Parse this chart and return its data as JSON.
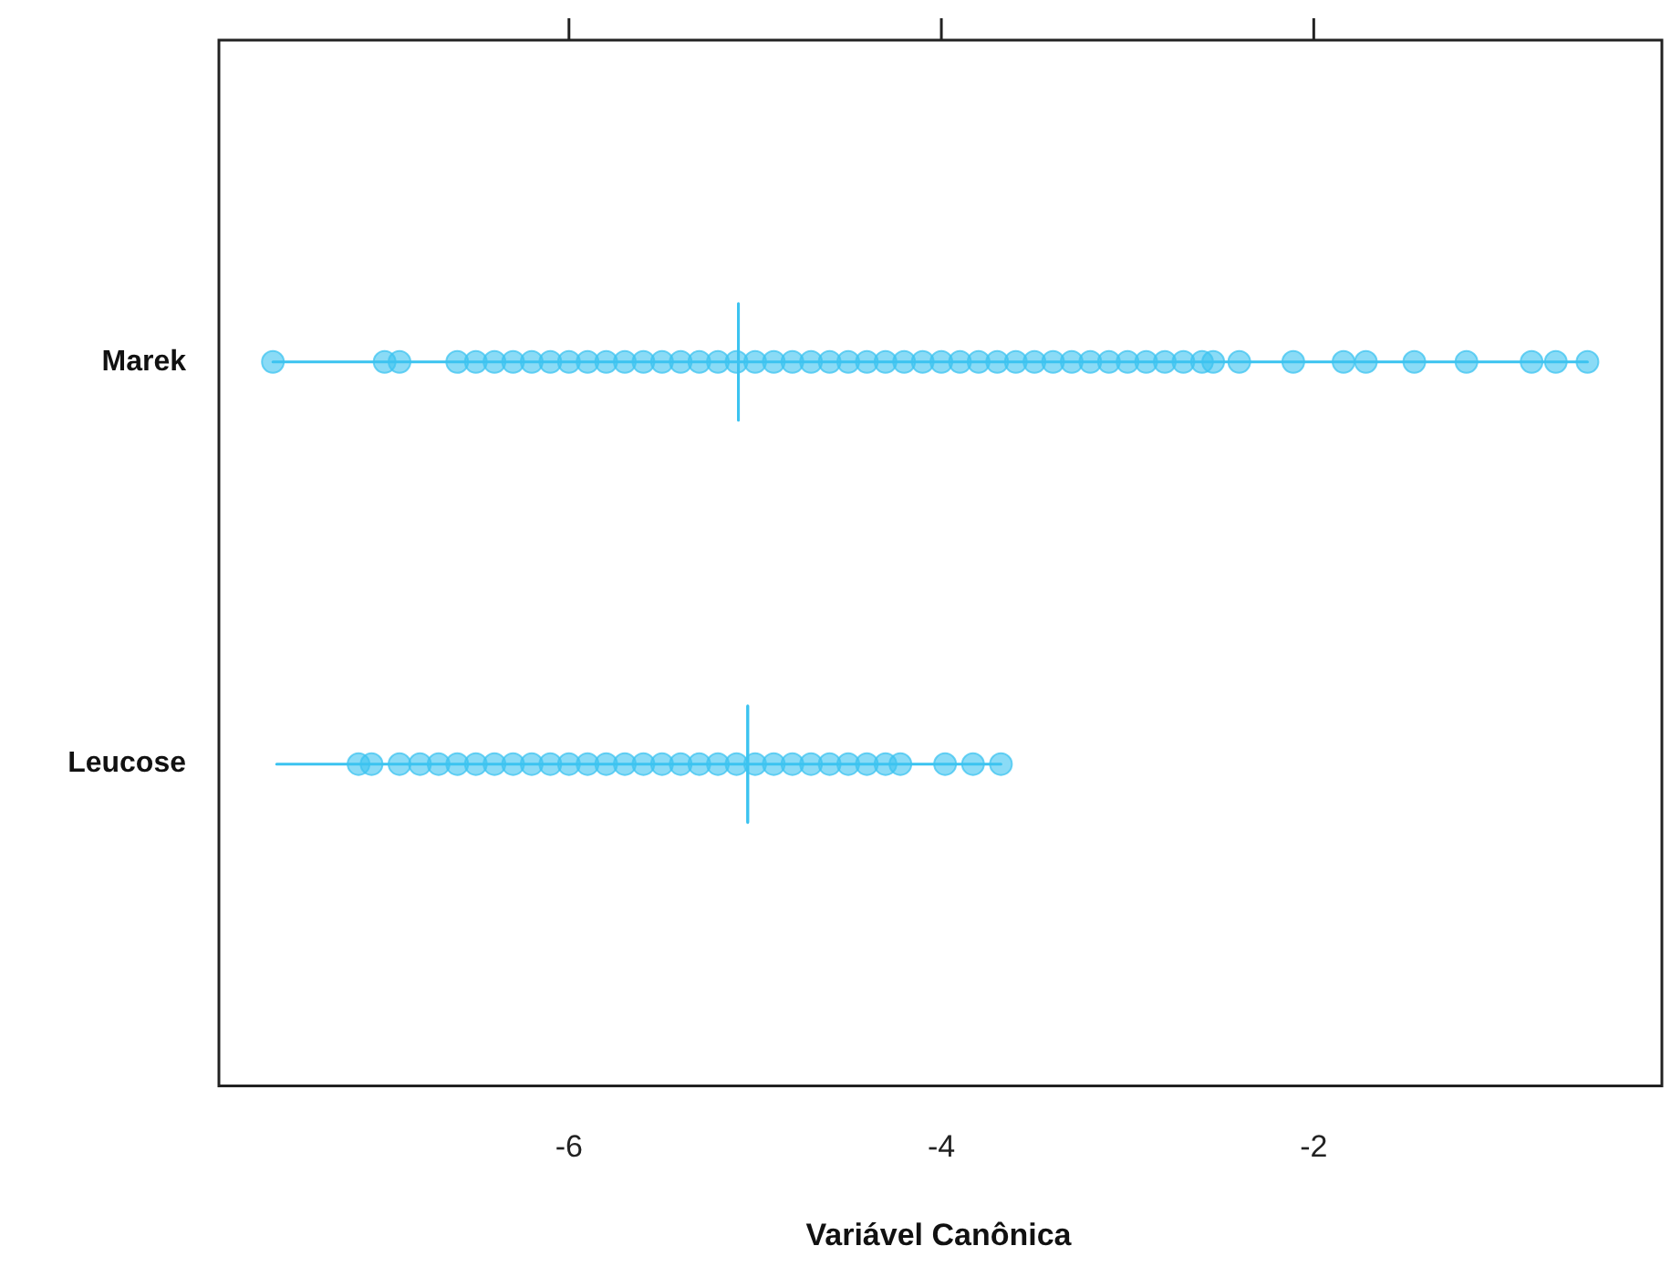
{
  "chart_data": {
    "type": "box",
    "orientation": "horizontal",
    "xlabel": "Variável Canônica",
    "categories": [
      "Marek",
      "Leucose"
    ],
    "xlim": [
      -7.88,
      -0.15
    ],
    "xticks": [
      -6,
      -4,
      -2
    ],
    "grid": false,
    "legend": false,
    "color": "#3cc3f0",
    "boxes": [
      {
        "low": -7.59,
        "q1": -5.09,
        "median": -5.09,
        "q3": -5.09,
        "high": -0.53
      },
      {
        "low": -7.57,
        "q1": -5.04,
        "median": -5.04,
        "q3": -5.04,
        "high": -3.68
      }
    ],
    "series": [
      {
        "type": "scatter",
        "color": "#3cc3f0",
        "x": [
          "Marek",
          "Marek",
          "Marek",
          "Marek",
          "Marek",
          "Marek",
          "Marek",
          "Marek",
          "Marek",
          "Marek",
          "Marek",
          "Marek",
          "Marek",
          "Marek",
          "Marek",
          "Marek",
          "Marek",
          "Marek",
          "Marek",
          "Marek",
          "Marek",
          "Marek",
          "Marek",
          "Marek",
          "Marek",
          "Marek",
          "Marek",
          "Marek",
          "Marek",
          "Marek",
          "Marek",
          "Marek",
          "Marek",
          "Marek",
          "Marek",
          "Marek",
          "Marek",
          "Marek",
          "Marek",
          "Marek",
          "Marek",
          "Marek",
          "Marek",
          "Marek",
          "Marek",
          "Marek",
          "Marek",
          "Marek",
          "Marek",
          "Marek",
          "Marek",
          "Marek",
          "Marek",
          "Marek"
        ],
        "values": [
          -7.59,
          -6.99,
          -6.91,
          -6.6,
          -6.5,
          -6.4,
          -6.3,
          -6.2,
          -6.1,
          -6.0,
          -5.9,
          -5.8,
          -5.7,
          -5.6,
          -5.5,
          -5.4,
          -5.3,
          -5.2,
          -5.1,
          -5.0,
          -4.9,
          -4.8,
          -4.7,
          -4.6,
          -4.5,
          -4.4,
          -4.3,
          -4.2,
          -4.1,
          -4.0,
          -3.9,
          -3.8,
          -3.7,
          -3.6,
          -3.5,
          -3.4,
          -3.3,
          -3.2,
          -3.1,
          -3.0,
          -2.9,
          -2.8,
          -2.7,
          -2.6,
          -2.54,
          -2.4,
          -2.11,
          -1.84,
          -1.72,
          -1.46,
          -1.18,
          -0.83,
          -0.7,
          -0.53
        ]
      },
      {
        "type": "scatter",
        "color": "#3cc3f0",
        "x": [
          "Leucose",
          "Leucose",
          "Leucose",
          "Leucose",
          "Leucose",
          "Leucose",
          "Leucose",
          "Leucose",
          "Leucose",
          "Leucose",
          "Leucose",
          "Leucose",
          "Leucose",
          "Leucose",
          "Leucose",
          "Leucose",
          "Leucose",
          "Leucose",
          "Leucose",
          "Leucose",
          "Leucose",
          "Leucose",
          "Leucose",
          "Leucose",
          "Leucose",
          "Leucose",
          "Leucose",
          "Leucose",
          "Leucose",
          "Leucose",
          "Leucose",
          "Leucose",
          "Leucose",
          "Leucose"
        ],
        "values": [
          -7.13,
          -7.06,
          -6.91,
          -6.8,
          -6.7,
          -6.6,
          -6.5,
          -6.4,
          -6.3,
          -6.2,
          -6.1,
          -6.0,
          -5.9,
          -5.8,
          -5.7,
          -5.6,
          -5.5,
          -5.4,
          -5.3,
          -5.2,
          -5.1,
          -5.0,
          -4.9,
          -4.8,
          -4.7,
          -4.6,
          -4.5,
          -4.4,
          -4.3,
          -4.22,
          -3.98,
          -3.83,
          null,
          -3.68
        ]
      }
    ],
    "marker": "circle"
  }
}
